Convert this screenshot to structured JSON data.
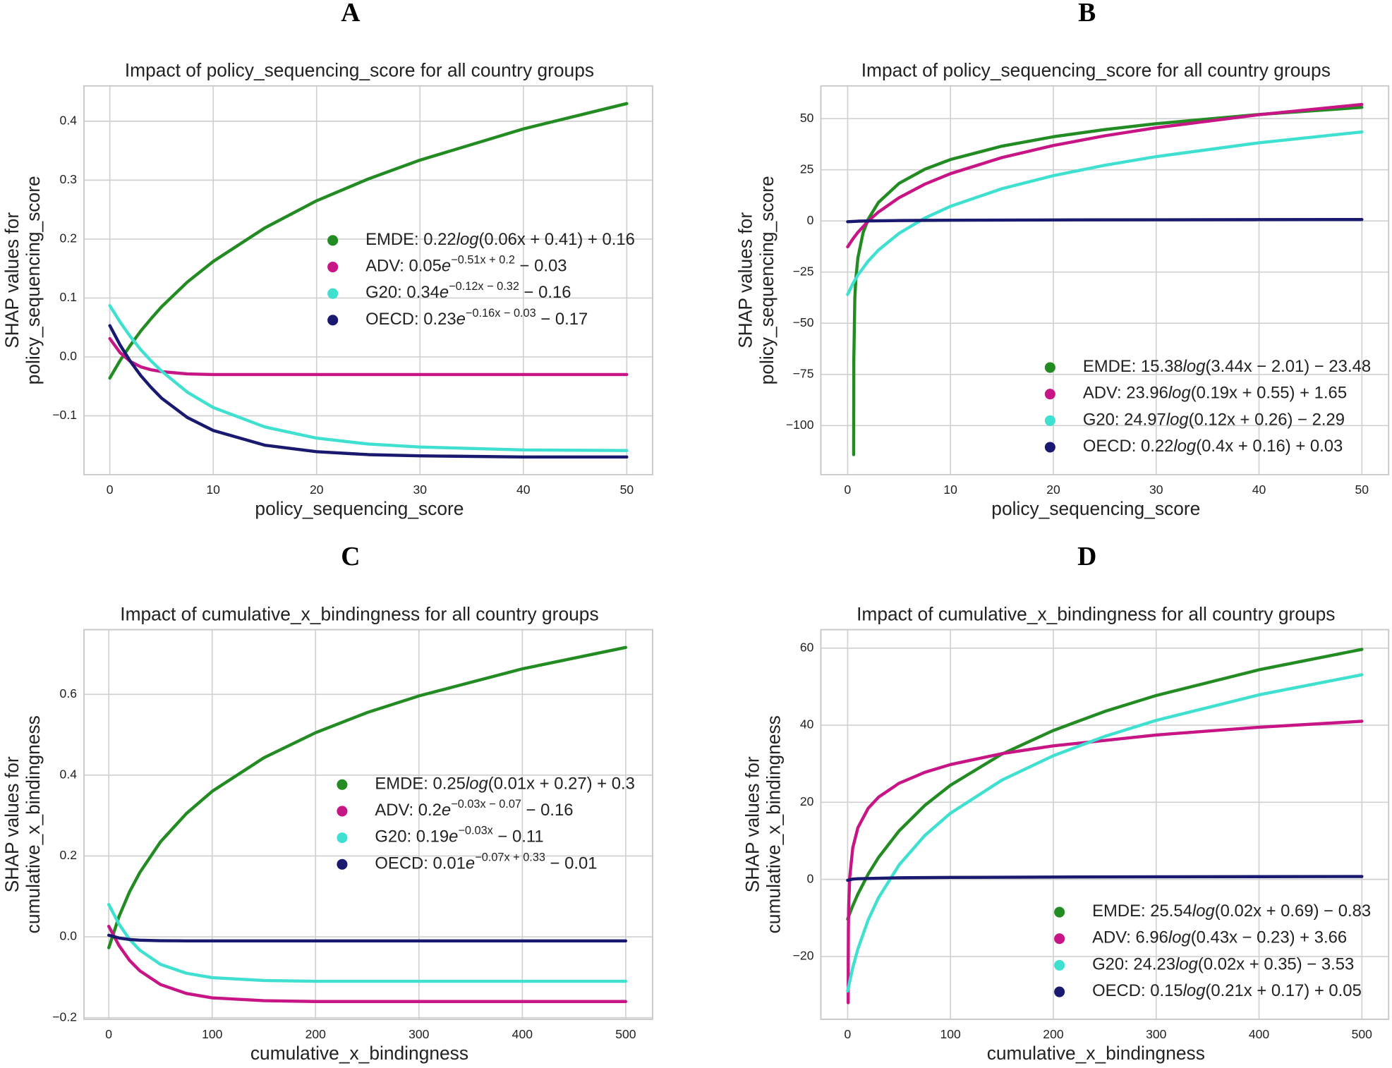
{
  "chart_data": [
    {
      "type": "line",
      "panel": "A",
      "title": "Impact of policy_sequencing_score for all country groups",
      "xlabel": "policy_sequencing_score",
      "ylabel": [
        "SHAP values for",
        "policy_sequencing_score"
      ],
      "xlim": [
        -2.5,
        52.5
      ],
      "ylim": [
        -0.2,
        0.46
      ],
      "xticks": [
        0,
        10,
        20,
        30,
        40,
        50
      ],
      "yticks": [
        {
          "value": -0.1,
          "label": "−0.1"
        },
        {
          "value": 0,
          "label": "0.0"
        },
        0.1,
        0.2,
        0.3,
        0.4
      ],
      "grid": true,
      "legend": "center right",
      "series": [
        {
          "label": [
            {
              "text": "EMDE: 0.22"
            },
            {
              "text": "log",
              "style": "italic"
            },
            {
              "text": "(0.06x + 0.41) + 0.16"
            }
          ],
          "color": "#228b22",
          "x": [
            0,
            1,
            2,
            3,
            4,
            5,
            7.5,
            10,
            15,
            20,
            25,
            30,
            40,
            50
          ],
          "values": [
            -0.036,
            -0.006,
            0.02,
            0.044,
            0.065,
            0.085,
            0.127,
            0.162,
            0.219,
            0.265,
            0.302,
            0.334,
            0.387,
            0.43
          ]
        },
        {
          "label": [
            {
              "text": "ADV: 0.05"
            },
            {
              "text": "e",
              "style": "italic"
            },
            {
              "text": "−0.51x + 0.2",
              "style": "sup"
            },
            {
              "text": " − 0.03"
            }
          ],
          "color": "#c71585",
          "x": [
            0,
            1,
            2,
            3,
            4,
            5,
            7.5,
            10,
            15,
            20,
            25,
            30,
            40,
            50
          ],
          "values": [
            0.031,
            0.007,
            -0.008,
            -0.017,
            -0.022,
            -0.025,
            -0.029,
            -0.03,
            -0.03,
            -0.03,
            -0.03,
            -0.03,
            -0.03,
            -0.03
          ]
        },
        {
          "label": [
            {
              "text": "G20: 0.34"
            },
            {
              "text": "e",
              "style": "italic"
            },
            {
              "text": "−0.12x − 0.32",
              "style": "sup"
            },
            {
              "text": " − 0.16"
            }
          ],
          "color": "#40e0d0",
          "x": [
            0,
            1,
            2,
            3,
            4,
            5,
            7.5,
            10,
            15,
            20,
            25,
            30,
            40,
            50
          ],
          "values": [
            0.087,
            0.059,
            0.034,
            0.012,
            -0.007,
            -0.024,
            -0.06,
            -0.086,
            -0.119,
            -0.138,
            -0.148,
            -0.153,
            -0.158,
            -0.159
          ]
        },
        {
          "label": [
            {
              "text": "OECD: 0.23"
            },
            {
              "text": "e",
              "style": "italic"
            },
            {
              "text": "−0.16x − 0.03",
              "style": "sup"
            },
            {
              "text": " − 0.17"
            }
          ],
          "color": "#191970",
          "x": [
            0,
            1,
            2,
            3,
            4,
            5,
            7.5,
            10,
            15,
            20,
            25,
            30,
            40,
            50
          ],
          "values": [
            0.053,
            0.02,
            -0.008,
            -0.032,
            -0.052,
            -0.07,
            -0.103,
            -0.125,
            -0.15,
            -0.161,
            -0.166,
            -0.168,
            -0.17,
            -0.17
          ]
        }
      ]
    },
    {
      "type": "line",
      "panel": "B",
      "title": "Impact of policy_sequencing_score for all country groups",
      "xlabel": "policy_sequencing_score",
      "ylabel": [
        "SHAP values for",
        "policy_sequencing_score"
      ],
      "xlim": [
        -2.6,
        52.6
      ],
      "ylim": [
        -124,
        66
      ],
      "xticks": [
        0,
        10,
        20,
        30,
        40,
        50
      ],
      "yticks": [
        {
          "value": -100,
          "label": "−100"
        },
        {
          "value": -75,
          "label": "−75"
        },
        {
          "value": -50,
          "label": "−50"
        },
        {
          "value": -25,
          "label": "−25"
        },
        0,
        25,
        50
      ],
      "grid": true,
      "legend": "lower right",
      "series": [
        {
          "label": [
            {
              "text": "EMDE: 15.38"
            },
            {
              "text": "log",
              "style": "italic"
            },
            {
              "text": "(3.44x − 2.01) − 23.48"
            }
          ],
          "color": "#228b22",
          "x": [
            0.5851,
            0.6,
            0.7,
            0.8,
            1,
            1.5,
            2,
            3,
            5,
            7.5,
            10,
            15,
            20,
            25,
            30,
            40,
            50
          ],
          "values": [
            -114.2,
            -68.4,
            -37.65,
            -28.07,
            -17.98,
            -5.83,
            0.87,
            9.09,
            18.37,
            25.26,
            30.01,
            36.56,
            41.15,
            44.67,
            47.53,
            52.04,
            55.51
          ]
        },
        {
          "label": [
            {
              "text": "ADV: 23.96"
            },
            {
              "text": "log",
              "style": "italic"
            },
            {
              "text": "(0.19x + 0.55) + 1.65"
            }
          ],
          "color": "#c71585",
          "x": [
            0,
            0.5,
            1,
            2,
            3,
            5,
            7.5,
            10,
            15,
            20,
            25,
            30,
            40,
            50
          ],
          "values": [
            -12.67,
            -8.86,
            -5.56,
            -0.09,
            4.37,
            11.36,
            17.96,
            23.12,
            30.97,
            36.87,
            41.61,
            45.56,
            51.92,
            56.94
          ]
        },
        {
          "label": [
            {
              "text": "G20: 24.97"
            },
            {
              "text": "log",
              "style": "italic"
            },
            {
              "text": "(0.12x + 0.26) − 2.29"
            }
          ],
          "color": "#40e0d0",
          "x": [
            0,
            0.5,
            1,
            2,
            3,
            5,
            7.5,
            10,
            15,
            20,
            25,
            30,
            40,
            50
          ],
          "values": [
            -35.93,
            -30.74,
            -26.45,
            -19.6,
            -14.23,
            -6.06,
            1.42,
            7.16,
            15.76,
            22.14,
            27.22,
            31.44,
            38.2,
            43.51
          ]
        },
        {
          "label": [
            {
              "text": "OECD: 0.22"
            },
            {
              "text": "log",
              "style": "italic"
            },
            {
              "text": "(0.4x + 0.16) + 0.03"
            }
          ],
          "color": "#191970",
          "x": [
            0,
            1,
            2,
            5,
            10,
            20,
            30,
            40,
            50
          ],
          "values": [
            -0.37,
            -0.1,
            0.02,
            0.2,
            0.34,
            0.49,
            0.58,
            0.64,
            0.69
          ]
        }
      ]
    },
    {
      "type": "line",
      "panel": "C",
      "title": "Impact of cumulative_x_bindingness for all country groups",
      "xlabel": "cumulative_x_bindingness",
      "ylabel": [
        "SHAP values for",
        "cumulative_x_bindingness"
      ],
      "xlim": [
        -24,
        526
      ],
      "ylim": [
        -0.204,
        0.76
      ],
      "xticks": [
        0,
        100,
        200,
        300,
        400,
        500
      ],
      "yticks": [
        {
          "value": -0.2,
          "label": "−0.2"
        },
        {
          "value": 0,
          "label": "0.0"
        },
        0.2,
        0.4,
        0.6
      ],
      "grid": true,
      "legend": "center right",
      "series": [
        {
          "label": [
            {
              "text": "EMDE: 0.25"
            },
            {
              "text": "log",
              "style": "italic"
            },
            {
              "text": "(0.01x + 0.27) + 0.3"
            }
          ],
          "color": "#228b22",
          "x": [
            0,
            10,
            20,
            30,
            50,
            75,
            100,
            150,
            200,
            250,
            300,
            400,
            500
          ],
          "values": [
            -0.027,
            0.051,
            0.111,
            0.159,
            0.235,
            0.305,
            0.36,
            0.443,
            0.505,
            0.555,
            0.596,
            0.663,
            0.716
          ]
        },
        {
          "label": [
            {
              "text": "ADV: 0.2"
            },
            {
              "text": "e",
              "style": "italic"
            },
            {
              "text": "−0.03x − 0.07",
              "style": "sup"
            },
            {
              "text": " − 0.16"
            }
          ],
          "color": "#c71585",
          "x": [
            0,
            10,
            20,
            30,
            50,
            75,
            100,
            150,
            200,
            250,
            300,
            400,
            500
          ],
          "values": [
            0.026,
            -0.022,
            -0.058,
            -0.084,
            -0.118,
            -0.14,
            -0.151,
            -0.158,
            -0.16,
            -0.16,
            -0.16,
            -0.16,
            -0.16
          ]
        },
        {
          "label": [
            {
              "text": "G20: 0.19"
            },
            {
              "text": "e",
              "style": "italic"
            },
            {
              "text": "−0.03x",
              "style": "sup"
            },
            {
              "text": " − 0.11"
            }
          ],
          "color": "#40e0d0",
          "x": [
            0,
            10,
            20,
            30,
            50,
            75,
            100,
            150,
            200,
            250,
            300,
            400,
            500
          ],
          "values": [
            0.08,
            0.031,
            -0.006,
            -0.033,
            -0.068,
            -0.09,
            -0.101,
            -0.108,
            -0.11,
            -0.11,
            -0.11,
            -0.11,
            -0.11
          ]
        },
        {
          "label": [
            {
              "text": "OECD: 0.01"
            },
            {
              "text": "e",
              "style": "italic"
            },
            {
              "text": "−0.07x + 0.33",
              "style": "sup"
            },
            {
              "text": " − 0.01"
            }
          ],
          "color": "#191970",
          "x": [
            0,
            10,
            20,
            30,
            50,
            75,
            100,
            150,
            200,
            250,
            300,
            400,
            500
          ],
          "values": [
            0.004,
            -0.003,
            -0.0066,
            -0.0083,
            -0.0096,
            -0.01,
            -0.01,
            -0.01,
            -0.01,
            -0.01,
            -0.01,
            -0.01,
            -0.01
          ]
        }
      ]
    },
    {
      "type": "line",
      "panel": "D",
      "title": "Impact of cumulative_x_bindingness for all country groups",
      "xlabel": "cumulative_x_bindingness",
      "ylabel": [
        "SHAP values for",
        "cumulative_x_bindingness"
      ],
      "xlim": [
        -26,
        526
      ],
      "ylim": [
        -36.3,
        64.8
      ],
      "xticks": [
        0,
        100,
        200,
        300,
        400,
        500
      ],
      "yticks": [
        {
          "value": -20,
          "label": "−20"
        },
        0,
        20,
        40,
        60
      ],
      "grid": true,
      "legend": "lower right",
      "series": [
        {
          "label": [
            {
              "text": "EMDE: 25.54"
            },
            {
              "text": "log",
              "style": "italic"
            },
            {
              "text": "(0.02x + 0.69) − 0.83"
            }
          ],
          "color": "#228b22",
          "x": [
            0,
            5,
            10,
            20,
            30,
            50,
            75,
            100,
            150,
            200,
            250,
            300,
            400,
            500
          ],
          "values": [
            -10.31,
            -6.85,
            -3.81,
            1.37,
            5.67,
            12.57,
            19.19,
            24.44,
            32.51,
            38.64,
            43.58,
            47.71,
            54.39,
            59.68
          ]
        },
        {
          "label": [
            {
              "text": "ADV: 6.96"
            },
            {
              "text": "log",
              "style": "italic"
            },
            {
              "text": "(0.43x − 0.23) + 3.66"
            }
          ],
          "color": "#c71585",
          "x": [
            0.5487,
            0.6,
            0.75,
            1,
            2,
            5,
            10,
            20,
            30,
            50,
            75,
            100,
            150,
            200,
            300,
            400,
            500
          ],
          "values": [
            -32.0,
            -21.23,
            -12.91,
            -7.54,
            0.44,
            8.2,
            13.43,
            18.45,
            21.33,
            24.94,
            27.78,
            29.8,
            32.63,
            34.65,
            37.47,
            39.48,
            41.03
          ]
        },
        {
          "label": [
            {
              "text": "G20: 24.23"
            },
            {
              "text": "log",
              "style": "italic"
            },
            {
              "text": "(0.02x + 0.35) − 3.53"
            }
          ],
          "color": "#40e0d0",
          "x": [
            0,
            5,
            10,
            20,
            30,
            50,
            75,
            100,
            150,
            200,
            250,
            300,
            400,
            500
          ],
          "values": [
            -28.97,
            -22.88,
            -18.02,
            -10.5,
            -4.77,
            3.74,
            11.38,
            17.17,
            25.76,
            32.09,
            37.11,
            41.26,
            47.89,
            53.09
          ]
        },
        {
          "label": [
            {
              "text": "OECD: 0.15"
            },
            {
              "text": "log",
              "style": "italic"
            },
            {
              "text": "(0.21x + 0.17) + 0.05"
            }
          ],
          "color": "#191970",
          "x": [
            0,
            5,
            10,
            50,
            100,
            200,
            300,
            400,
            500
          ],
          "values": [
            -0.22,
            0.08,
            0.17,
            0.41,
            0.51,
            0.61,
            0.67,
            0.71,
            0.75
          ]
        }
      ]
    }
  ]
}
